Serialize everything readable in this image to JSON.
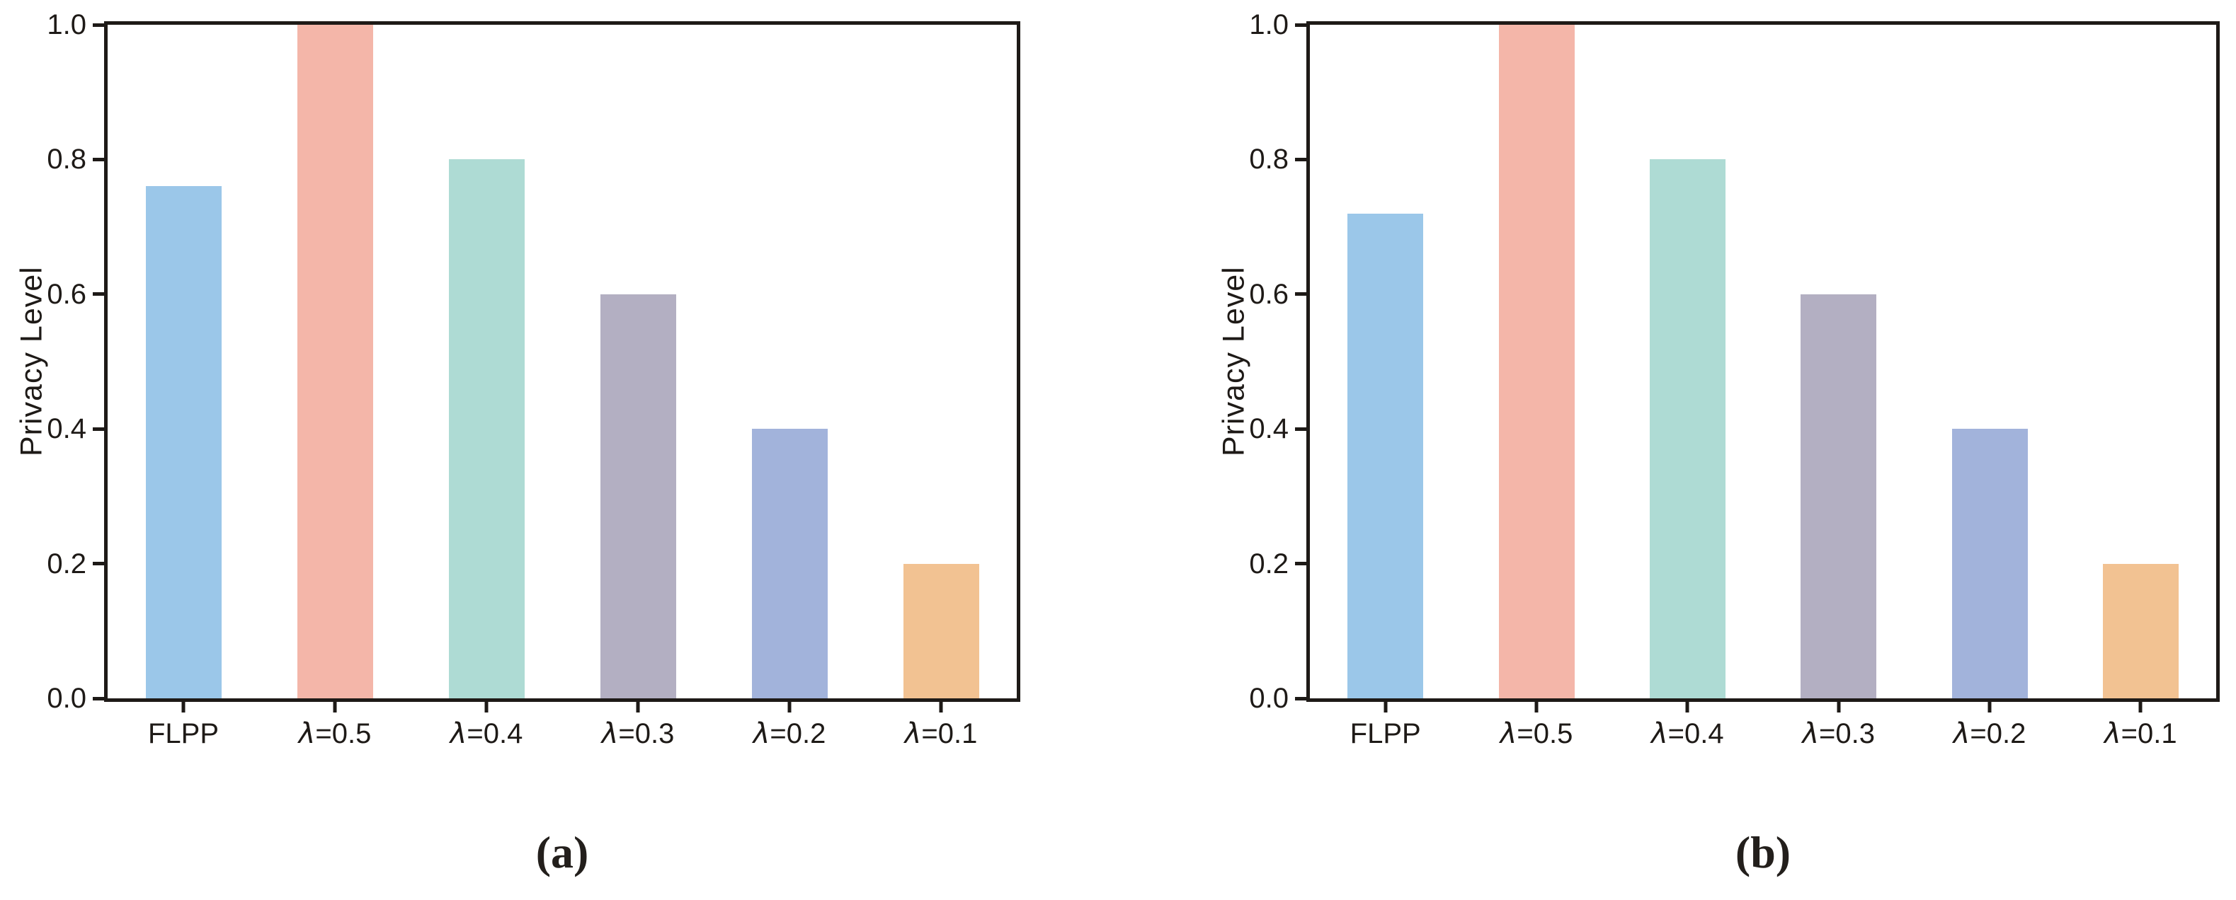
{
  "figure": {
    "background": "#ffffff",
    "axis_color": "#1e1a17",
    "text_color": "#1e1a17"
  },
  "chart_data": [
    {
      "type": "bar",
      "caption": "(a)",
      "title": "",
      "xlabel": "",
      "ylabel": "Privacy Level",
      "categories": [
        "FLPP",
        "λ=0.5",
        "λ=0.4",
        "λ=0.3",
        "λ=0.2",
        "λ=0.1"
      ],
      "values": [
        0.76,
        1.0,
        0.8,
        0.6,
        0.4,
        0.2
      ],
      "bar_colors": [
        "#9BC7E9",
        "#F4B6A9",
        "#AEDBD4",
        "#B3AFC2",
        "#A2B3DB",
        "#F2C292"
      ],
      "ylim": [
        0.0,
        1.0
      ],
      "yticks": [
        "0.0",
        "0.2",
        "0.4",
        "0.6",
        "0.8",
        "1.0"
      ],
      "grid": false,
      "legend": null
    },
    {
      "type": "bar",
      "caption": "(b)",
      "title": "",
      "xlabel": "",
      "ylabel": "Privacy Level",
      "categories": [
        "FLPP",
        "λ=0.5",
        "λ=0.4",
        "λ=0.3",
        "λ=0.2",
        "λ=0.1"
      ],
      "values": [
        0.72,
        1.0,
        0.8,
        0.6,
        0.4,
        0.2
      ],
      "bar_colors": [
        "#9BC7E9",
        "#F4B6A9",
        "#AEDBD4",
        "#B3AFC2",
        "#A2B3DB",
        "#F2C292"
      ],
      "ylim": [
        0.0,
        1.0
      ],
      "yticks": [
        "0.0",
        "0.2",
        "0.4",
        "0.6",
        "0.8",
        "1.0"
      ],
      "grid": false,
      "legend": null
    }
  ]
}
